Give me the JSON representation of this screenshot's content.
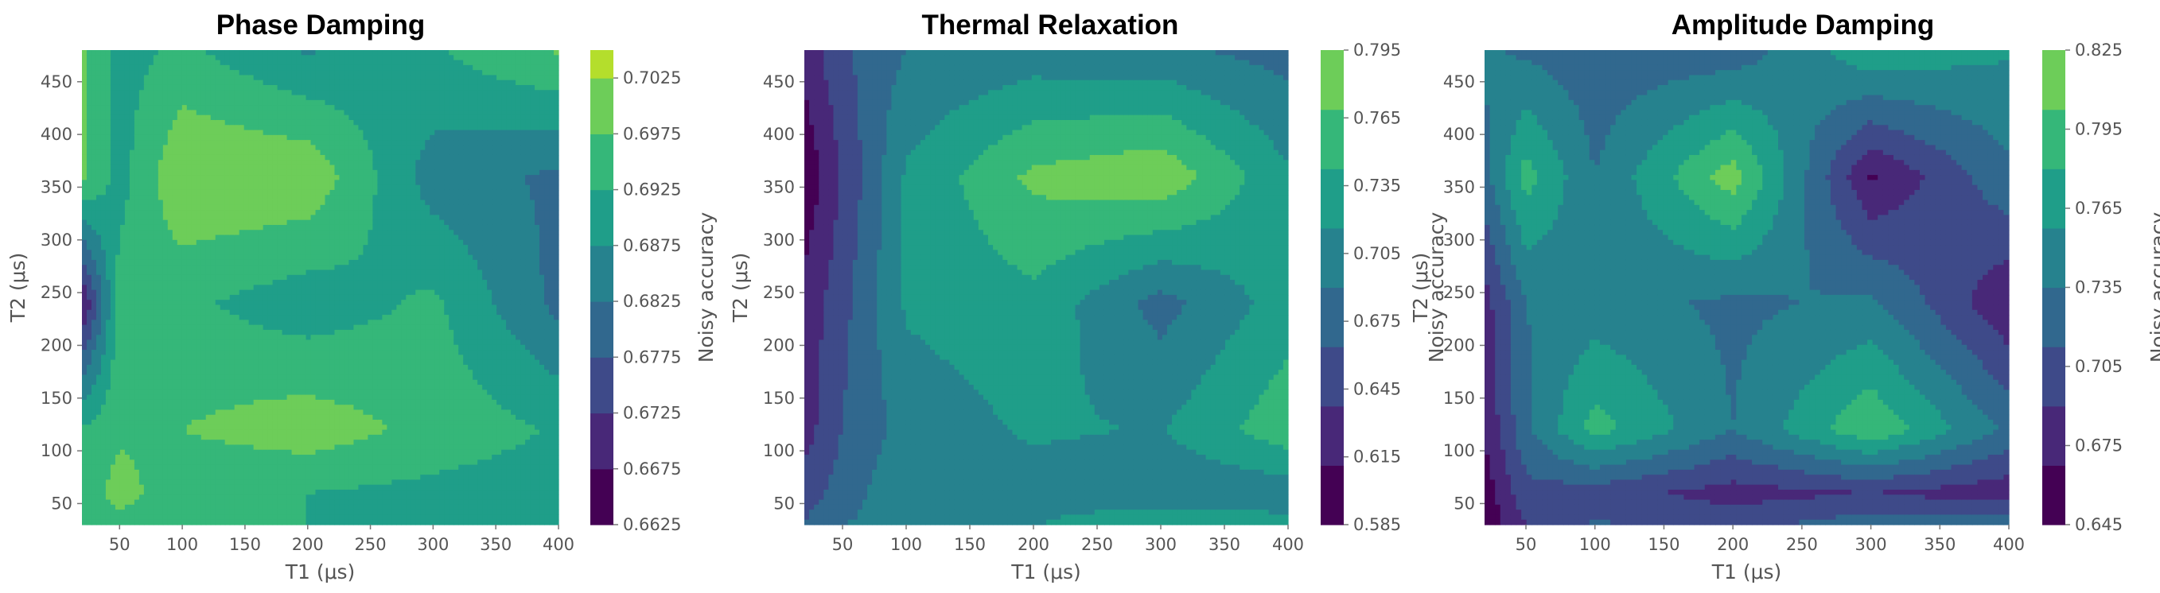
{
  "colormap": [
    "#440154",
    "#482878",
    "#3e4a89",
    "#31688e",
    "#26828e",
    "#1f9e89",
    "#35b779",
    "#6dcd59",
    "#b4de2c",
    "#fde725"
  ],
  "chart_data": [
    {
      "type": "heatmap",
      "title": "Phase Damping",
      "xlabel": "T1 (μs)",
      "ylabel": "T2 (μs)",
      "colorbar_label": "Noisy accuracy",
      "xlim": [
        20,
        400
      ],
      "ylim": [
        30,
        480
      ],
      "x_ticks": [
        50,
        100,
        150,
        200,
        250,
        300,
        350,
        400
      ],
      "y_ticks": [
        50,
        100,
        150,
        200,
        250,
        300,
        350,
        400,
        450
      ],
      "x": [
        20,
        50,
        100,
        200,
        300,
        400
      ],
      "y": [
        30,
        60,
        120,
        240,
        360,
        480
      ],
      "z": [
        [
          0.6935,
          0.696,
          0.693,
          0.6925,
          0.691,
          0.6895
        ],
        [
          0.6945,
          0.6995,
          0.694,
          0.6925,
          0.691,
          0.6895
        ],
        [
          0.693,
          0.6965,
          0.6975,
          0.7005,
          0.696,
          0.692
        ],
        [
          0.666,
          0.695,
          0.6935,
          0.6895,
          0.6935,
          0.681
        ],
        [
          0.6985,
          0.6905,
          0.7025,
          0.7015,
          0.685,
          0.6815
        ],
        [
          0.699,
          0.6905,
          0.6935,
          0.687,
          0.692,
          0.698
        ]
      ],
      "colorbar": {
        "min": 0.6625,
        "max": 0.7025,
        "top": 0.705,
        "ticks": [
          "0.7025",
          "0.6975",
          "0.6925",
          "0.6875",
          "0.6825",
          "0.6775",
          "0.6725",
          "0.6675",
          "0.6625"
        ]
      }
    },
    {
      "type": "heatmap",
      "title": "Thermal Relaxation",
      "xlabel": "T1 (μs)",
      "ylabel": "T2 (μs)",
      "colorbar_label": "Noisy accuracy",
      "xlim": [
        20,
        400
      ],
      "ylim": [
        30,
        480
      ],
      "x_ticks": [
        50,
        100,
        150,
        200,
        250,
        300,
        350,
        400
      ],
      "y_ticks": [
        50,
        100,
        150,
        200,
        250,
        300,
        350,
        400,
        450
      ],
      "x": [
        20,
        50,
        100,
        200,
        300,
        400
      ],
      "y": [
        30,
        60,
        120,
        240,
        360,
        480
      ],
      "z": [
        [
          0.665,
          0.69,
          0.7,
          0.715,
          0.74,
          0.725
        ],
        [
          0.65,
          0.675,
          0.715,
          0.705,
          0.695,
          0.7
        ],
        [
          0.625,
          0.665,
          0.7,
          0.72,
          0.715,
          0.76
        ],
        [
          0.62,
          0.655,
          0.72,
          0.735,
          0.68,
          0.73
        ],
        [
          0.59,
          0.64,
          0.72,
          0.775,
          0.79,
          0.72
        ],
        [
          0.62,
          0.66,
          0.69,
          0.7,
          0.695,
          0.68
        ]
      ],
      "colorbar": {
        "min": 0.585,
        "max": 0.795,
        "top": 0.795,
        "ticks": [
          "0.795",
          "0.765",
          "0.735",
          "0.705",
          "0.675",
          "0.645",
          "0.615",
          "0.585"
        ]
      }
    },
    {
      "type": "heatmap",
      "title": "Amplitude Damping",
      "xlabel": "T1 (μs)",
      "ylabel": "T2 (μs)",
      "colorbar_label": "Noisy accuracy",
      "xlim": [
        20,
        400
      ],
      "ylim": [
        30,
        480
      ],
      "x_ticks": [
        50,
        100,
        150,
        200,
        250,
        300,
        350,
        400
      ],
      "y_ticks": [
        50,
        100,
        150,
        200,
        250,
        300,
        350,
        400,
        450
      ],
      "x": [
        20,
        50,
        100,
        200,
        300,
        400
      ],
      "y": [
        30,
        60,
        120,
        240,
        360,
        480
      ],
      "z": [
        [
          0.65,
          0.69,
          0.715,
          0.705,
          0.725,
          0.735
        ],
        [
          0.655,
          0.705,
          0.7,
          0.68,
          0.69,
          0.675
        ],
        [
          0.67,
          0.73,
          0.79,
          0.735,
          0.8,
          0.73
        ],
        [
          0.68,
          0.735,
          0.745,
          0.73,
          0.74,
          0.67
        ],
        [
          0.725,
          0.79,
          0.735,
          0.815,
          0.665,
          0.73
        ],
        [
          0.74,
          0.73,
          0.72,
          0.72,
          0.775,
          0.76
        ]
      ],
      "colorbar": {
        "min": 0.645,
        "max": 0.825,
        "top": 0.825,
        "ticks": [
          "0.825",
          "0.795",
          "0.765",
          "0.735",
          "0.705",
          "0.675",
          "0.645"
        ]
      }
    }
  ]
}
